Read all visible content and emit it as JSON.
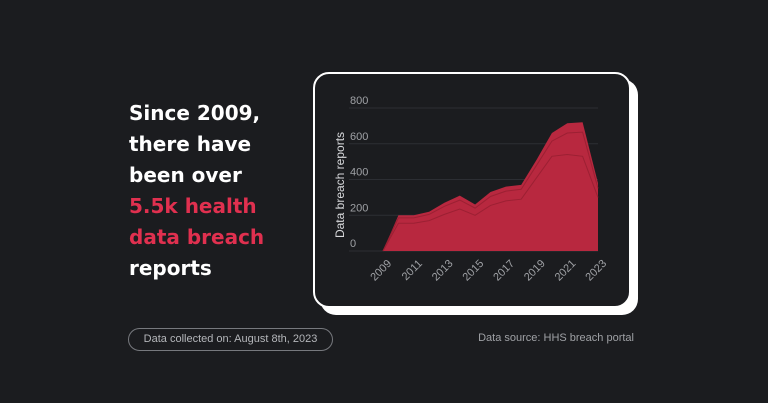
{
  "headline": {
    "line1": "Since 2009,",
    "line2": "there have",
    "line3": "been over",
    "highlight1": "5.5k health",
    "highlight2": "data breach",
    "line6": "reports"
  },
  "colors": {
    "background": "#1b1c1f",
    "accent": "#e0304f",
    "area": "#b8283f",
    "text": "#ffffff"
  },
  "chart_data": {
    "type": "area",
    "title": "",
    "xlabel": "",
    "ylabel": "Data breach reports",
    "x": [
      2009,
      2010,
      2011,
      2012,
      2013,
      2014,
      2015,
      2016,
      2017,
      2018,
      2019,
      2020,
      2021,
      2022,
      2023
    ],
    "xticks": [
      "2009",
      "2011",
      "2013",
      "2015",
      "2017",
      "2019",
      "2021",
      "2023"
    ],
    "yticks": [
      "0",
      "200",
      "400",
      "600",
      "800"
    ],
    "ylim": [
      0,
      800
    ],
    "series": [
      {
        "values": [
          0,
          200,
          200,
          220,
          270,
          310,
          260,
          330,
          360,
          370,
          510,
          660,
          715,
          720,
          380
        ]
      }
    ],
    "inner_lines": [
      [
        0,
        185,
        185,
        205,
        250,
        285,
        240,
        305,
        335,
        345,
        480,
        615,
        660,
        665,
        350
      ],
      [
        0,
        155,
        155,
        170,
        205,
        235,
        200,
        255,
        280,
        290,
        410,
        530,
        540,
        530,
        300
      ]
    ],
    "grid": true,
    "legend": "none"
  },
  "footer": {
    "collected": "Data collected on: August 8th, 2023",
    "source": "Data source: HHS breach portal"
  }
}
